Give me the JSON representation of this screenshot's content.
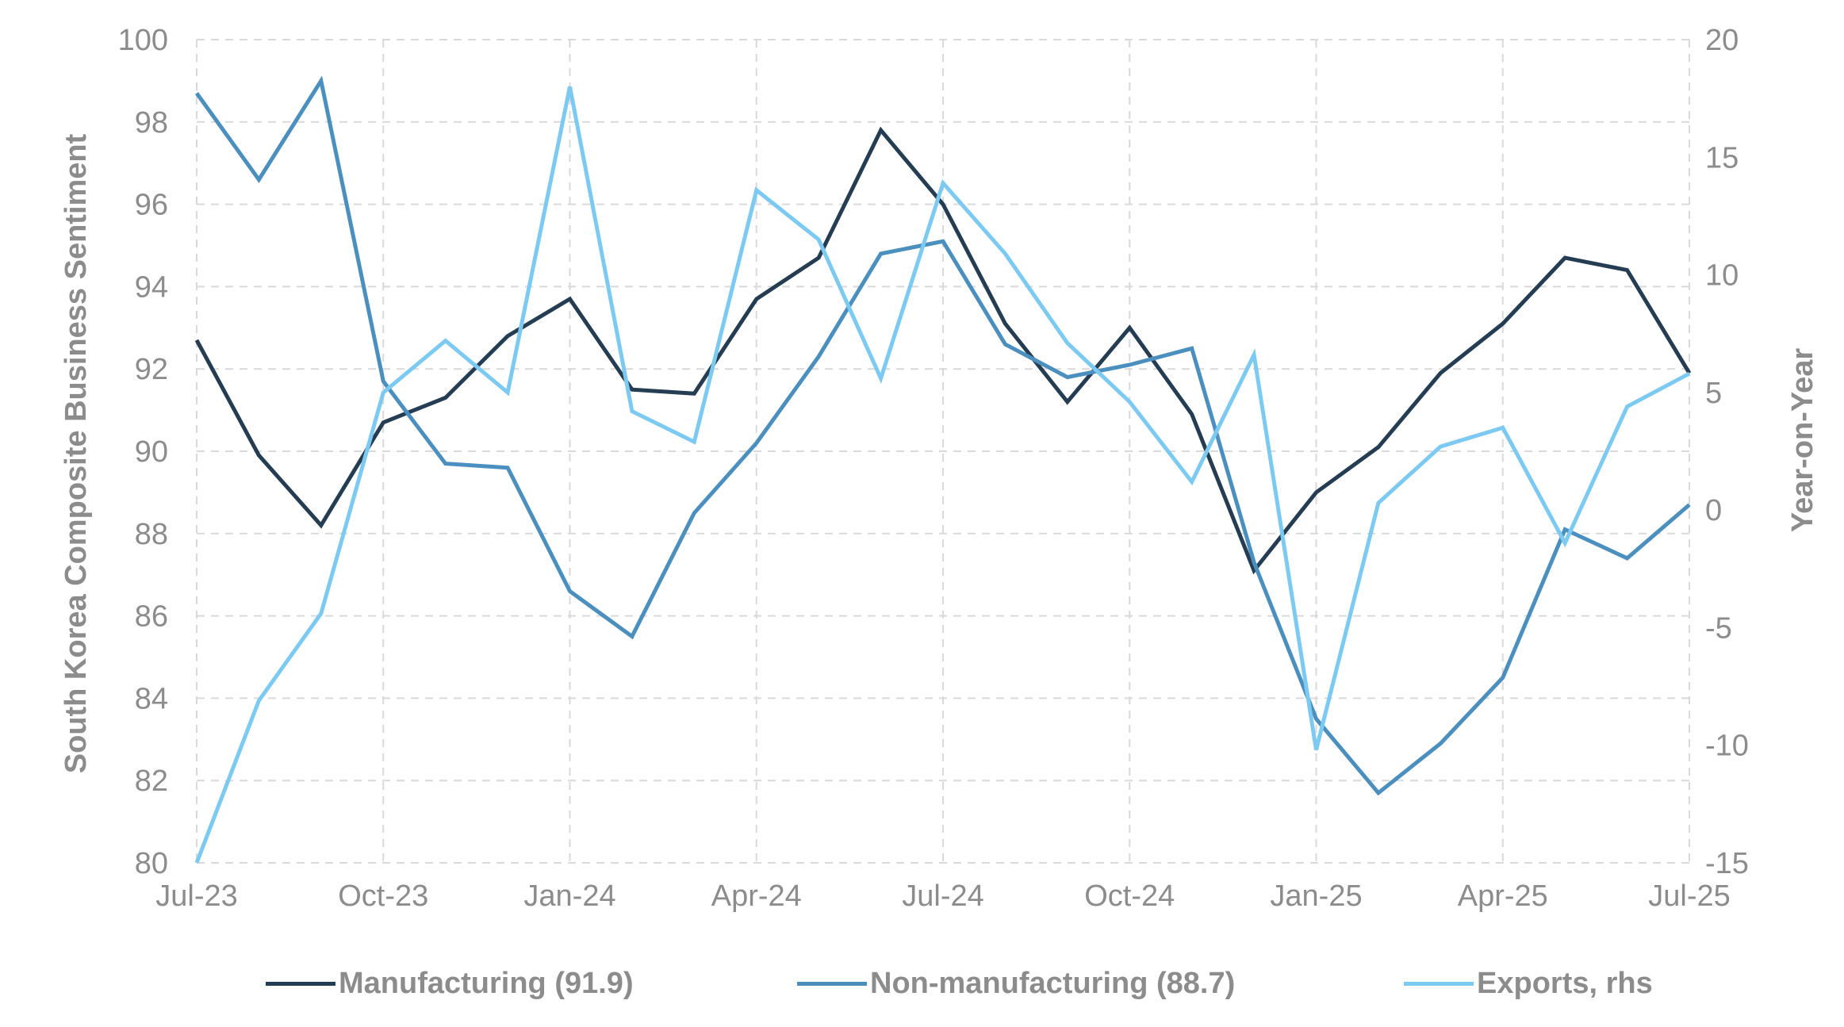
{
  "chart_data": {
    "type": "line",
    "categories": [
      "Jul-23",
      "Aug-23",
      "Sep-23",
      "Oct-23",
      "Nov-23",
      "Dec-23",
      "Jan-24",
      "Feb-24",
      "Mar-24",
      "Apr-24",
      "May-24",
      "Jun-24",
      "Jul-24",
      "Aug-24",
      "Sep-24",
      "Oct-24",
      "Nov-24",
      "Dec-24",
      "Jan-25",
      "Feb-25",
      "Mar-25",
      "Apr-25",
      "May-25",
      "Jun-25",
      "Jul-25"
    ],
    "x_tick_labels": [
      "Jul-23",
      "Oct-23",
      "Jan-24",
      "Apr-24",
      "Jul-24",
      "Oct-24",
      "Jan-25",
      "Apr-25",
      "Jul-25"
    ],
    "x_tick_indices": [
      0,
      3,
      6,
      9,
      12,
      15,
      18,
      21,
      24
    ],
    "ylabel": "South Korea Composite Business Sentiment",
    "ylim": [
      80,
      100
    ],
    "y_ticks": [
      80,
      82,
      84,
      86,
      88,
      90,
      92,
      94,
      96,
      98,
      100
    ],
    "y2label": "Year-on-Year",
    "y2lim": [
      -15,
      20
    ],
    "y2_ticks": [
      -15,
      -10,
      -5,
      0,
      5,
      10,
      15,
      20
    ],
    "grid": true,
    "legend_position": "bottom",
    "series": [
      {
        "name": "Manufacturing (91.9)",
        "axis": "left",
        "color": "#253d52",
        "values": [
          92.7,
          89.9,
          88.2,
          90.7,
          91.3,
          92.8,
          93.7,
          91.5,
          91.4,
          93.7,
          94.7,
          97.8,
          96.0,
          93.1,
          91.2,
          93.0,
          90.9,
          87.1,
          89.0,
          90.1,
          91.9,
          93.1,
          94.7,
          94.4,
          91.9
        ]
      },
      {
        "name": "Non-manufacturing (88.7)",
        "axis": "left",
        "color": "#4b8fbf",
        "values": [
          98.7,
          96.6,
          99.0,
          91.7,
          89.7,
          89.6,
          86.6,
          85.5,
          88.5,
          90.2,
          92.3,
          94.8,
          95.1,
          92.6,
          91.8,
          92.1,
          92.5,
          87.3,
          83.5,
          81.7,
          82.9,
          84.5,
          88.1,
          87.4,
          88.7
        ]
      },
      {
        "name": "Exports, rhs",
        "axis": "right",
        "color": "#7ccaf2",
        "values": [
          -15.0,
          -8.1,
          -4.4,
          5.0,
          7.2,
          5.0,
          18.0,
          4.2,
          2.9,
          13.6,
          11.5,
          5.6,
          13.9,
          10.9,
          7.1,
          4.6,
          1.2,
          6.6,
          -10.2,
          0.3,
          2.7,
          3.5,
          -1.4,
          4.4,
          5.8
        ]
      }
    ]
  }
}
